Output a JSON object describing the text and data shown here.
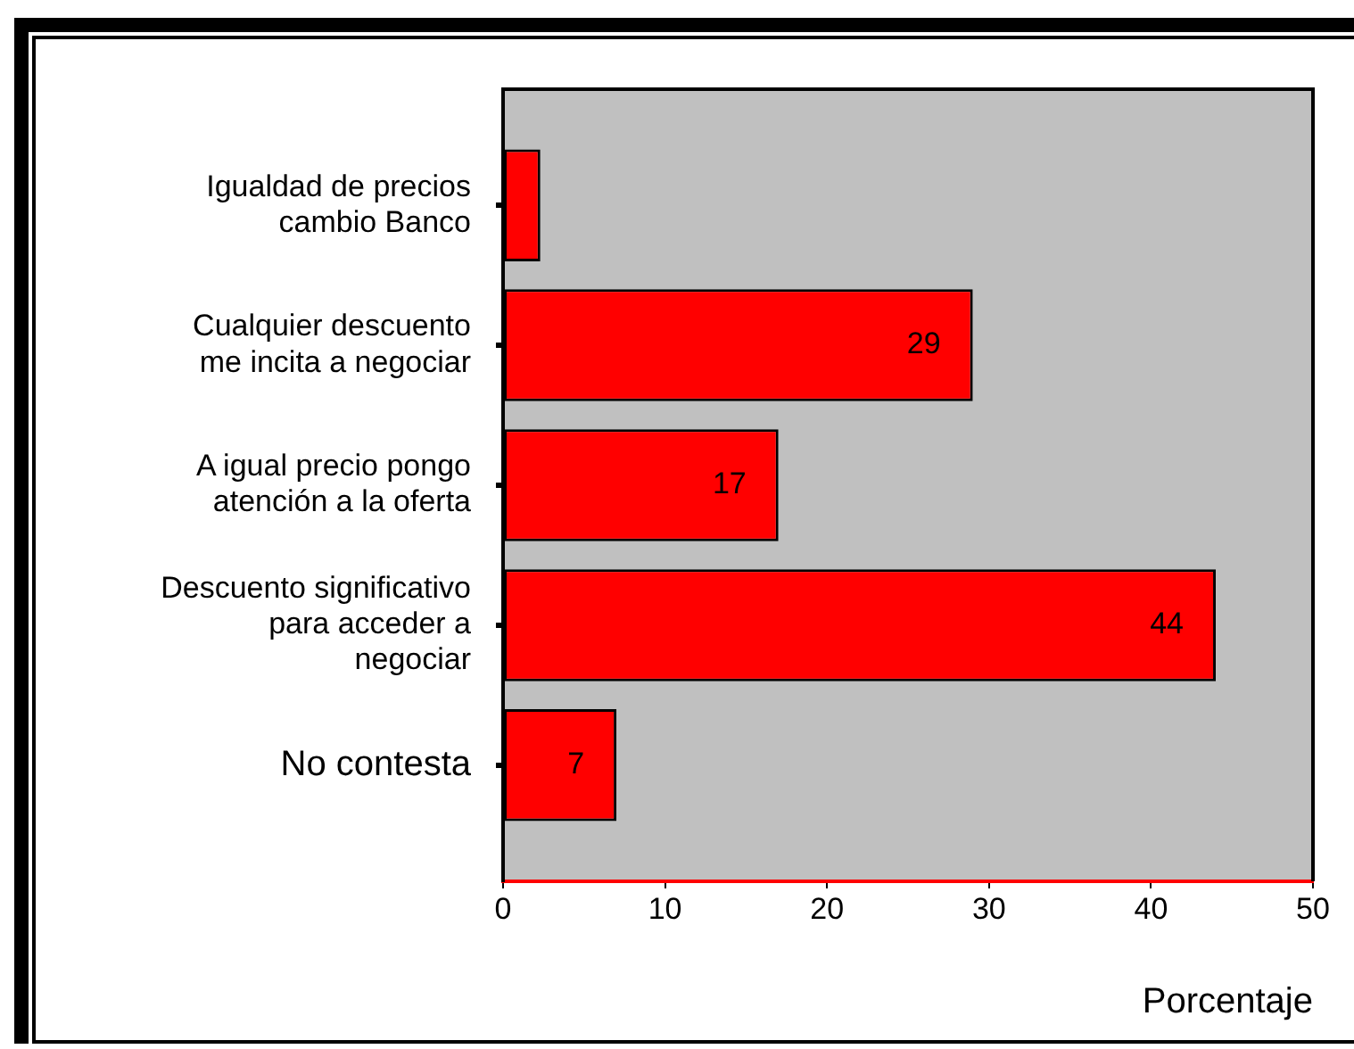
{
  "chart_data": {
    "type": "bar",
    "orientation": "horizontal",
    "categories": [
      "Igualdad de precios cambio Banco",
      "Cualquier descuento me incita a negociar",
      "A igual precio pongo atención a la oferta",
      "Descuento significativo para acceder a negociar",
      "No contesta"
    ],
    "values": [
      2.3,
      29,
      17,
      44,
      7
    ],
    "value_labels": [
      null,
      "29",
      "17",
      "44",
      "7"
    ],
    "color": "#ff0000",
    "xlabel": "Porcentaje",
    "xlim": [
      0,
      50
    ],
    "xticks": [
      0,
      10,
      20,
      30,
      40,
      50
    ],
    "legend": false
  }
}
